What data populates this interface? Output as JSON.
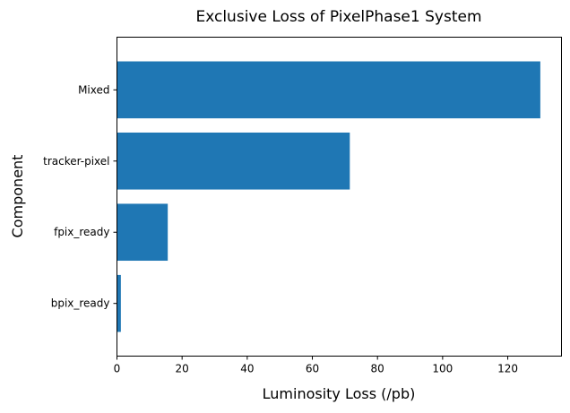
{
  "chart_data": {
    "type": "bar",
    "orientation": "horizontal",
    "title": "Exclusive Loss of PixelPhase1 System",
    "xlabel": "Luminosity Loss (/pb)",
    "ylabel": "Component",
    "categories": [
      "bpix_ready",
      "fpix_ready",
      "tracker-pixel",
      "Mixed"
    ],
    "values": [
      1.2,
      15.6,
      71.5,
      130.0
    ],
    "xlim": [
      0,
      136.5
    ],
    "xticks": [
      0,
      20,
      40,
      60,
      80,
      100,
      120
    ],
    "grid": false,
    "legend": "none",
    "bar_color": "#1f77b4"
  }
}
